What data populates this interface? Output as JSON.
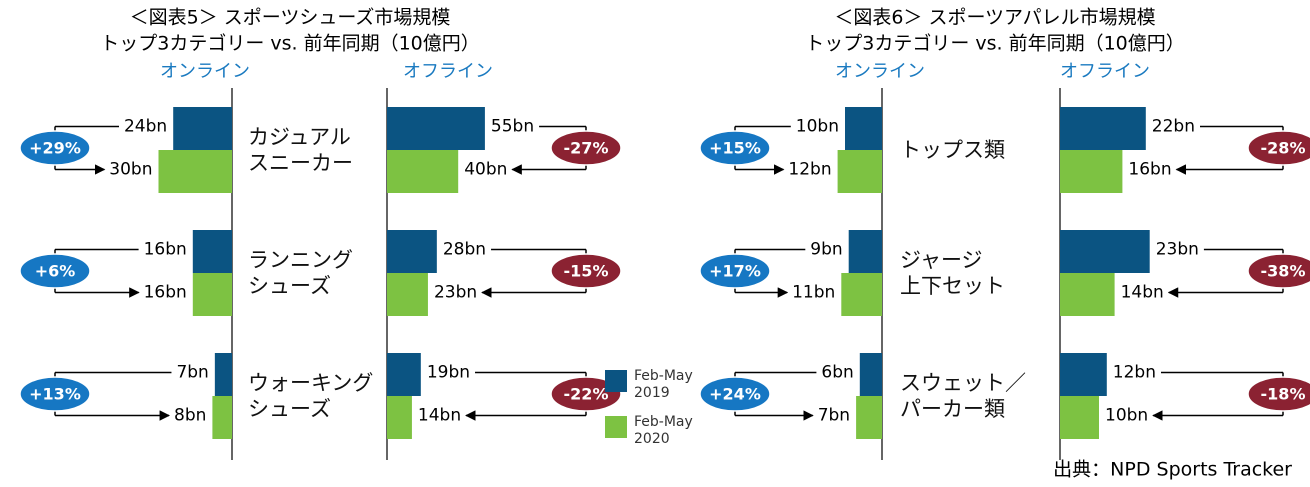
{
  "chart_data": [
    {
      "type": "bar",
      "title": "＜図表5＞ スポーツシューズ市場規模",
      "subtitle": "トップ3カテゴリー vs. 前年同期（10億円）",
      "categories": [
        "カジュアル\nスニーカー",
        "ランニング\nシューズ",
        "ウォーキング\nシューズ"
      ],
      "groups": [
        {
          "name": "オンライン",
          "side": "left",
          "change_color": "#1677c3",
          "change_labels": [
            "+29%",
            "+6%",
            "+13%"
          ],
          "series": [
            {
              "name": "Feb-May 2019",
              "color": "#0b5482",
              "values": [
                24,
                16,
                7
              ],
              "value_labels": [
                "24bn",
                "16bn",
                "7bn"
              ]
            },
            {
              "name": "Feb-May 2020",
              "color": "#7dc242",
              "values": [
                30,
                16,
                8
              ],
              "value_labels": [
                "30bn",
                "16bn",
                "8bn"
              ]
            }
          ]
        },
        {
          "name": "オフライン",
          "side": "right",
          "change_color": "#8b2232",
          "change_labels": [
            "-27%",
            "-15%",
            "-22%"
          ],
          "series": [
            {
              "name": "Feb-May 2019",
              "color": "#0b5482",
              "values": [
                55,
                28,
                19
              ],
              "value_labels": [
                "55bn",
                "28bn",
                "19bn"
              ]
            },
            {
              "name": "Feb-May 2020",
              "color": "#7dc242",
              "values": [
                40,
                23,
                14
              ],
              "value_labels": [
                "40bn",
                "23bn",
                "14bn"
              ]
            }
          ]
        }
      ]
    },
    {
      "type": "bar",
      "title": "＜図表6＞ スポーツアパレル市場規模",
      "subtitle": "トップ3カテゴリー vs. 前年同期（10億円）",
      "categories": [
        "トップス類",
        "ジャージ\n上下セット",
        "スウェット／\nパーカー類"
      ],
      "groups": [
        {
          "name": "オンライン",
          "side": "left",
          "change_color": "#1677c3",
          "change_labels": [
            "+15%",
            "+17%",
            "+24%"
          ],
          "series": [
            {
              "name": "Feb-May 2019",
              "color": "#0b5482",
              "values": [
                10,
                9,
                6
              ],
              "value_labels": [
                "10bn",
                "9bn",
                "6bn"
              ]
            },
            {
              "name": "Feb-May 2020",
              "color": "#7dc242",
              "values": [
                12,
                11,
                7
              ],
              "value_labels": [
                "12bn",
                "11bn",
                "7bn"
              ]
            }
          ]
        },
        {
          "name": "オフライン",
          "side": "right",
          "change_color": "#8b2232",
          "change_labels": [
            "-28%",
            "-38%",
            "-18%"
          ],
          "series": [
            {
              "name": "Feb-May 2019",
              "color": "#0b5482",
              "values": [
                22,
                23,
                12
              ],
              "value_labels": [
                "22bn",
                "23bn",
                "12bn"
              ]
            },
            {
              "name": "Feb-May 2020",
              "color": "#7dc242",
              "values": [
                16,
                14,
                10
              ],
              "value_labels": [
                "16bn",
                "14bn",
                "10bn"
              ]
            }
          ]
        }
      ]
    }
  ],
  "source": "出典：NPD Sports Tracker"
}
